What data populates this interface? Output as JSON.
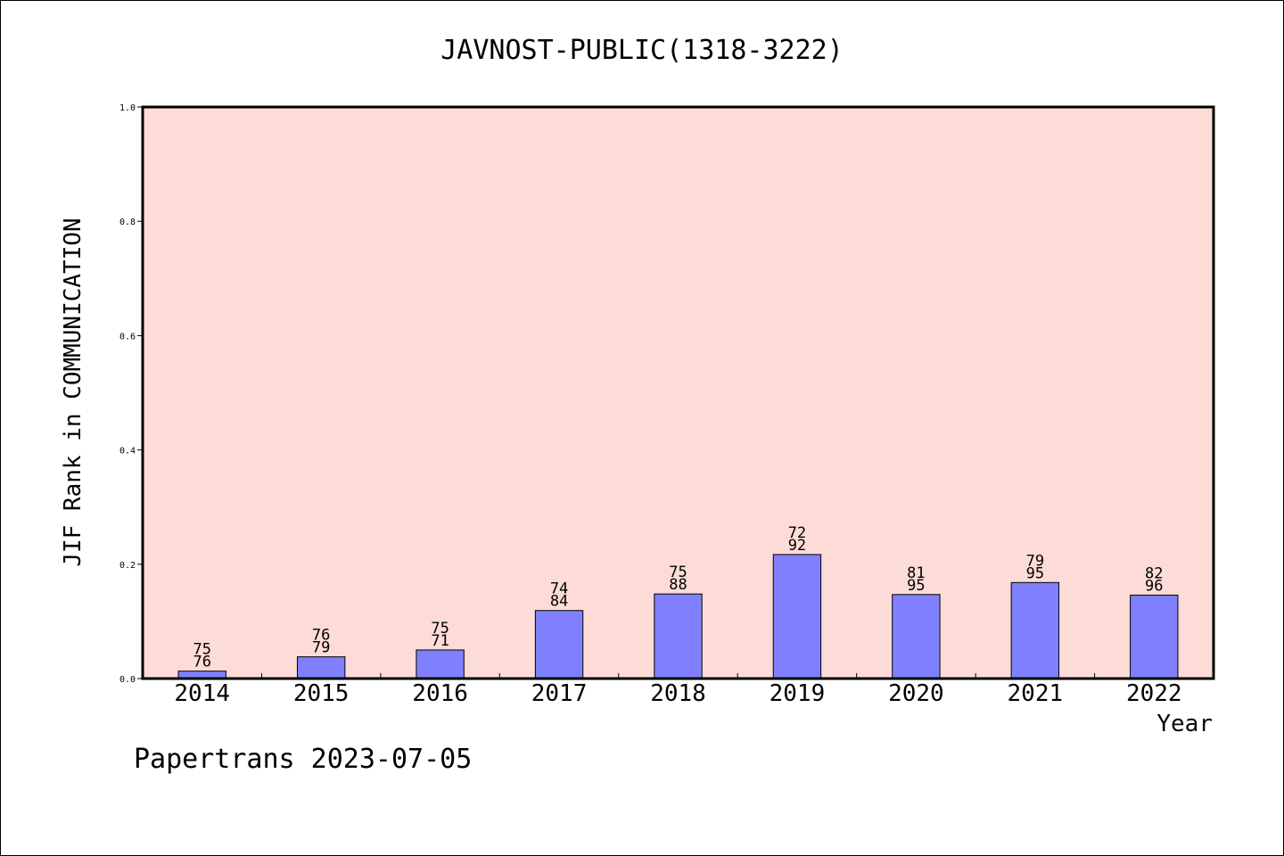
{
  "chart_data": {
    "type": "bar",
    "title": "JAVNOST-PUBLIC(1318-3222)",
    "xlabel": "Year",
    "ylabel": "JIF Rank in COMMUNICATION",
    "ylim": [
      0,
      1.0
    ],
    "yticks": [
      "0.0",
      "0.2",
      "0.4",
      "0.6",
      "0.8",
      "1.0"
    ],
    "categories": [
      "2014",
      "2015",
      "2016",
      "2017",
      "2018",
      "2019",
      "2020",
      "2021",
      "2022"
    ],
    "values": [
      0.013,
      0.038,
      0.05,
      0.119,
      0.148,
      0.217,
      0.147,
      0.168,
      0.146
    ],
    "label_top": [
      "75",
      "76",
      "75",
      "74",
      "75",
      "72",
      "81",
      "79",
      "82"
    ],
    "label_bottom": [
      "76",
      "79",
      "71",
      "84",
      "88",
      "92",
      "95",
      "95",
      "96"
    ],
    "colors": {
      "plot_background": "#fddbd7",
      "bar": "#8080ff"
    }
  },
  "footer": "Papertrans 2023-07-05"
}
